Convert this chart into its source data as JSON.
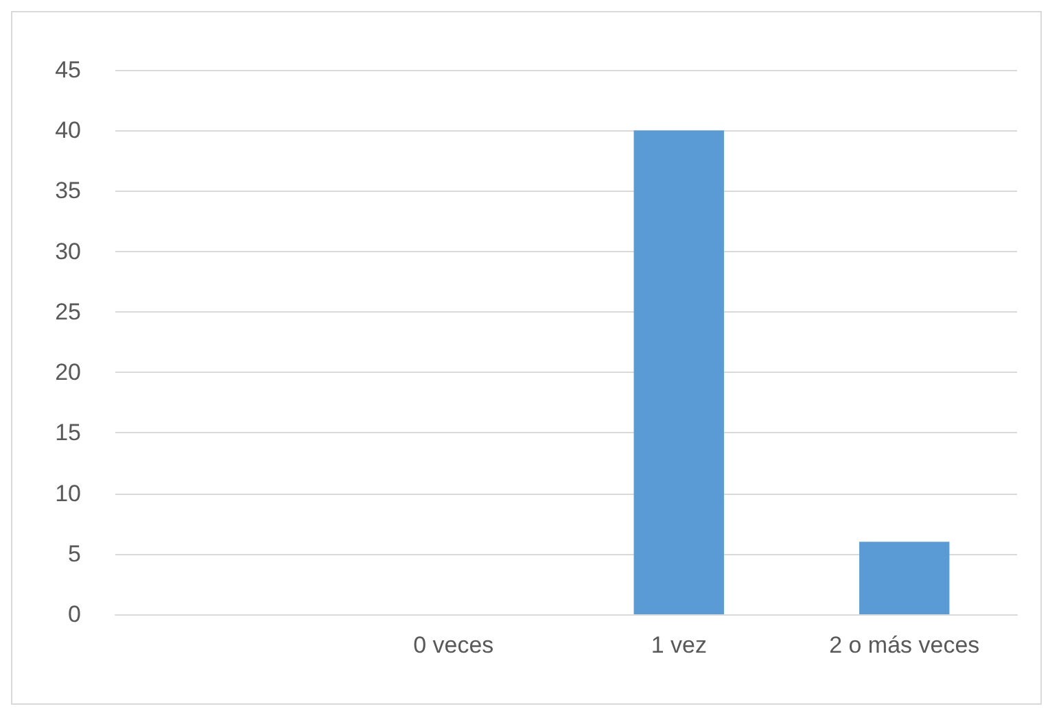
{
  "chart_data": {
    "type": "bar",
    "categories": [
      null,
      "0 veces",
      "1 vez",
      "2 o más veces"
    ],
    "values": [
      null,
      0,
      40,
      6
    ],
    "color": "#5b9bd5",
    "ylim": [
      0,
      45
    ],
    "yticks": [
      0,
      5,
      10,
      15,
      20,
      25,
      30,
      35,
      40,
      45
    ],
    "grid": "y"
  }
}
